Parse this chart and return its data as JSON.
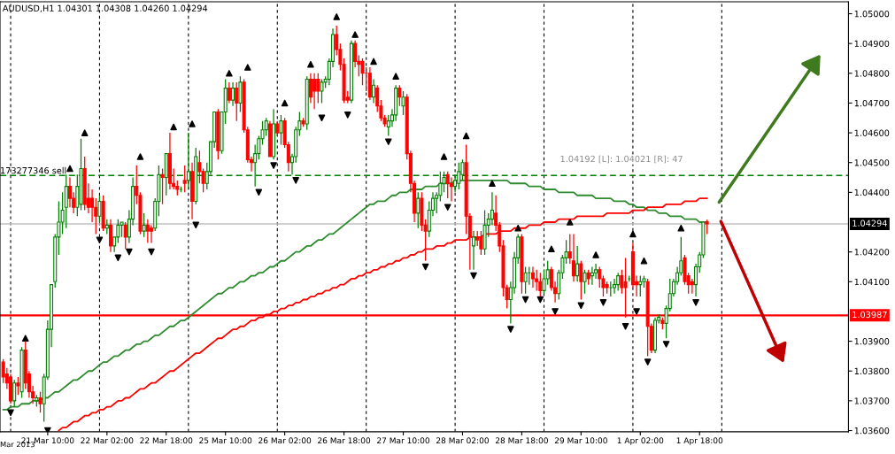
{
  "chart_data": {
    "type": "candlestick",
    "title": "AUDUSD,H1 1.04301 1.04308 1.04260 1.04294",
    "annotations": [
      "Mar 2013",
      "1.04192 [L]: 1.04021 [R]: 47"
    ],
    "categories": [
      null,
      null,
      null,
      null,
      null,
      null,
      null,
      null,
      null,
      null,
      null,
      null,
      "21 Mar 10:00",
      null,
      null,
      null,
      null,
      null,
      null,
      null,
      null,
      null,
      null,
      null,
      null,
      null,
      null,
      null,
      "22 Mar 02:00",
      null,
      null,
      null,
      null,
      null,
      null,
      null,
      null,
      null,
      null,
      null,
      null,
      null,
      null,
      null,
      "22 Mar 18:00",
      null,
      null,
      null,
      null,
      null,
      null,
      null,
      null,
      null,
      null,
      null,
      null,
      null,
      null,
      null,
      "25 Mar 10:00",
      null,
      null,
      null,
      null,
      null,
      null,
      null,
      null,
      null,
      null,
      null,
      null,
      null,
      null,
      null,
      "26 Mar 02:00",
      null,
      null,
      null,
      null,
      null,
      null,
      null,
      null,
      null,
      null,
      null,
      null,
      null,
      null,
      null,
      "26 Mar 18:00",
      null,
      null,
      null,
      null,
      null,
      null,
      null,
      null,
      null,
      null,
      null,
      null,
      null,
      null,
      null,
      "27 Mar 10:00",
      null,
      null,
      null,
      null,
      null,
      null,
      null,
      null,
      null,
      null,
      null,
      null,
      null,
      null,
      null,
      "28 Mar 02:00",
      null,
      null,
      null,
      null,
      null,
      null,
      null,
      null,
      null,
      null,
      null,
      null,
      null,
      null,
      null,
      "28 Mar 18:00",
      null,
      null,
      null,
      null,
      null,
      null,
      null,
      null,
      null,
      null,
      null,
      null,
      null,
      null,
      null,
      "29 Mar 10:00",
      null,
      null,
      null,
      null,
      null,
      null,
      null,
      null,
      null,
      null,
      null,
      null,
      null,
      null,
      null,
      "1 Apr 02:00",
      null,
      null,
      null,
      null,
      null,
      null,
      null,
      null,
      null,
      null,
      null,
      null,
      null,
      null,
      null,
      "1 Apr 18:00",
      null,
      null
    ],
    "ohlc": [
      [
        1.0383,
        1.0384,
        1.0376,
        1.0378
      ],
      [
        1.0379,
        1.0381,
        1.0374,
        1.0376
      ],
      [
        1.0378,
        1.0379,
        1.0369,
        1.037
      ],
      [
        1.037,
        1.0377,
        1.0368,
        1.0376
      ],
      [
        1.0376,
        1.0378,
        1.0372,
        1.0375
      ],
      [
        1.0373,
        1.0388,
        1.0371,
        1.0387
      ],
      [
        1.0387,
        1.039,
        1.0374,
        1.0376
      ],
      [
        1.0379,
        1.038,
        1.0371,
        1.0373
      ],
      [
        1.0373,
        1.0375,
        1.0369,
        1.0371
      ],
      [
        1.037,
        1.0372,
        1.0368,
        1.0371
      ],
      [
        1.0371,
        1.0373,
        1.0366,
        1.0369
      ],
      [
        1.0369,
        1.0379,
        1.0363,
        1.0378
      ],
      [
        1.0378,
        1.0397,
        1.0377,
        1.0394
      ],
      [
        1.0394,
        1.0409,
        1.0388,
        1.0409
      ],
      [
        1.041,
        1.0426,
        1.0408,
        1.0425
      ],
      [
        1.0425,
        1.0437,
        1.0419,
        1.043
      ],
      [
        1.043,
        1.044,
        1.0426,
        1.0434
      ],
      [
        1.0435,
        1.0446,
        1.0428,
        1.0442
      ],
      [
        1.0442,
        1.0445,
        1.0435,
        1.0438
      ],
      [
        1.0438,
        1.044,
        1.0433,
        1.0435
      ],
      [
        1.0435,
        1.0446,
        1.0432,
        1.0442
      ],
      [
        1.0436,
        1.0458,
        1.0434,
        1.0448
      ],
      [
        1.0448,
        1.0452,
        1.0434,
        1.0436
      ],
      [
        1.0438,
        1.0443,
        1.0433,
        1.0435
      ],
      [
        1.0438,
        1.0441,
        1.043,
        1.0435
      ],
      [
        1.0435,
        1.0438,
        1.0426,
        1.0432
      ],
      [
        1.0432,
        1.0439,
        1.043,
        1.0437
      ],
      [
        1.0437,
        1.0439,
        1.0427,
        1.0428
      ],
      [
        1.0428,
        1.0431,
        1.0426,
        1.0429
      ],
      [
        1.0429,
        1.0431,
        1.042,
        1.0422
      ],
      [
        1.0422,
        1.0425,
        1.042,
        1.0425
      ],
      [
        1.0425,
        1.0431,
        1.0423,
        1.0429
      ],
      [
        1.0429,
        1.043,
        1.0425,
        1.043
      ],
      [
        1.0429,
        1.043,
        1.0421,
        1.0425
      ],
      [
        1.0425,
        1.0434,
        1.0423,
        1.0431
      ],
      [
        1.0431,
        1.0445,
        1.0429,
        1.0442
      ],
      [
        1.0442,
        1.0449,
        1.0436,
        1.0439
      ],
      [
        1.0439,
        1.044,
        1.0426,
        1.0427
      ],
      [
        1.0427,
        1.0433,
        1.0425,
        1.0429
      ],
      [
        1.0429,
        1.0431,
        1.0423,
        1.0427
      ],
      [
        1.0428,
        1.0429,
        1.0423,
        1.0427
      ],
      [
        1.0428,
        1.0438,
        1.0427,
        1.0437
      ],
      [
        1.0437,
        1.0449,
        1.0432,
        1.0446
      ],
      [
        1.0446,
        1.0448,
        1.0436,
        1.0445
      ],
      [
        1.0445,
        1.0453,
        1.0439,
        1.0453
      ],
      [
        1.0453,
        1.046,
        1.0441,
        1.0443
      ],
      [
        1.0443,
        1.0448,
        1.0441,
        1.0442
      ],
      [
        1.0442,
        1.0444,
        1.0439,
        1.0441
      ],
      [
        1.0441,
        1.0442,
        1.044,
        1.0441
      ],
      [
        1.0444,
        1.0449,
        1.044,
        1.0443
      ],
      [
        1.0444,
        1.046,
        1.0441,
        1.0447
      ],
      [
        1.0447,
        1.045,
        1.0431,
        1.0437
      ],
      [
        1.0437,
        1.0455,
        1.0436,
        1.0452
      ],
      [
        1.045,
        1.0454,
        1.0443,
        1.0447
      ],
      [
        1.0447,
        1.0448,
        1.044,
        1.0443
      ],
      [
        1.0443,
        1.045,
        1.0441,
        1.0447
      ],
      [
        1.0447,
        1.0457,
        1.0446,
        1.0457
      ],
      [
        1.0457,
        1.0467,
        1.0455,
        1.0467
      ],
      [
        1.0467,
        1.0468,
        1.0451,
        1.0454
      ],
      [
        1.0454,
        1.0467,
        1.0453,
        1.0467
      ],
      [
        1.0467,
        1.0478,
        1.0463,
        1.0475
      ],
      [
        1.0475,
        1.0477,
        1.047,
        1.0471
      ],
      [
        1.0471,
        1.0477,
        1.0469,
        1.0475
      ],
      [
        1.0475,
        1.0477,
        1.0464,
        1.047
      ],
      [
        1.047,
        1.0479,
        1.0467,
        1.0477
      ],
      [
        1.0477,
        1.0478,
        1.046,
        1.0461
      ],
      [
        1.0461,
        1.0462,
        1.045,
        1.0451
      ],
      [
        1.0451,
        1.0452,
        1.0447,
        1.045
      ],
      [
        1.045,
        1.0456,
        1.0442,
        1.0453
      ],
      [
        1.0453,
        1.0459,
        1.0451,
        1.0458
      ],
      [
        1.0458,
        1.0464,
        1.0456,
        1.0461
      ],
      [
        1.0461,
        1.0465,
        1.0459,
        1.0464
      ],
      [
        1.0463,
        1.0464,
        1.0452,
        1.0452
      ],
      [
        1.0452,
        1.0468,
        1.0451,
        1.0463
      ],
      [
        1.0463,
        1.0464,
        1.0459,
        1.046
      ],
      [
        1.046,
        1.0466,
        1.0456,
        1.0464
      ],
      [
        1.0464,
        1.0465,
        1.0455,
        1.0456
      ],
      [
        1.0456,
        1.0457,
        1.0447,
        1.045
      ],
      [
        1.045,
        1.0453,
        1.0446,
        1.0452
      ],
      [
        1.0452,
        1.0462,
        1.045,
        1.0461
      ],
      [
        1.0461,
        1.0467,
        1.0459,
        1.0464
      ],
      [
        1.0464,
        1.0465,
        1.0462,
        1.0463
      ],
      [
        1.0463,
        1.0479,
        1.0461,
        1.0478
      ],
      [
        1.0478,
        1.048,
        1.047,
        1.0472
      ],
      [
        1.0478,
        1.048,
        1.0468,
        1.0474
      ],
      [
        1.0478,
        1.048,
        1.047,
        1.0474
      ],
      [
        1.0474,
        1.0478,
        1.047,
        1.0477
      ],
      [
        1.0477,
        1.0479,
        1.0475,
        1.0478
      ],
      [
        1.0478,
        1.0485,
        1.0476,
        1.0484
      ],
      [
        1.0484,
        1.0495,
        1.0482,
        1.0493
      ],
      [
        1.0493,
        1.0496,
        1.0486,
        1.0488
      ],
      [
        1.0488,
        1.049,
        1.0481,
        1.0483
      ],
      [
        1.0483,
        1.0485,
        1.047,
        1.0471
      ],
      [
        1.0472,
        1.0474,
        1.047,
        1.0471
      ],
      [
        1.0471,
        1.0491,
        1.047,
        1.049
      ],
      [
        1.049,
        1.0491,
        1.0482,
        1.0484
      ],
      [
        1.0484,
        1.0486,
        1.0479,
        1.0483
      ],
      [
        1.0484,
        1.0485,
        1.0476,
        1.048
      ],
      [
        1.048,
        1.0482,
        1.0474,
        1.048
      ],
      [
        1.048,
        1.0482,
        1.0471,
        1.0472
      ],
      [
        1.0472,
        1.0478,
        1.047,
        1.0476
      ],
      [
        1.0475,
        1.0476,
        1.0467,
        1.0469
      ],
      [
        1.0469,
        1.0471,
        1.0464,
        1.0465
      ],
      [
        1.0465,
        1.0466,
        1.0462,
        1.0463
      ],
      [
        1.0462,
        1.0466,
        1.0459,
        1.0464
      ],
      [
        1.0464,
        1.0468,
        1.0462,
        1.0466
      ],
      [
        1.0466,
        1.0476,
        1.0464,
        1.0475
      ],
      [
        1.0475,
        1.0476,
        1.0469,
        1.0472
      ],
      [
        1.0469,
        1.0474,
        1.0466,
        1.0472
      ],
      [
        1.0472,
        1.0473,
        1.0451,
        1.0453
      ],
      [
        1.0453,
        1.0454,
        1.044,
        1.0443
      ],
      [
        1.0443,
        1.0444,
        1.043,
        1.0433
      ],
      [
        1.0433,
        1.044,
        1.0428,
        1.0438
      ],
      [
        1.0438,
        1.044,
        1.0427,
        1.0429
      ],
      [
        1.0429,
        1.0431,
        1.0417,
        1.0427
      ],
      [
        1.0427,
        1.0437,
        1.0425,
        1.0434
      ],
      [
        1.0434,
        1.044,
        1.0432,
        1.0438
      ],
      [
        1.0438,
        1.044,
        1.0433,
        1.0439
      ],
      [
        1.0439,
        1.0447,
        1.0437,
        1.0443
      ],
      [
        1.0443,
        1.0447,
        1.044,
        1.0445
      ],
      [
        1.0446,
        1.0447,
        1.0438,
        1.0443
      ],
      [
        1.0443,
        1.0445,
        1.0437,
        1.0442
      ],
      [
        1.0442,
        1.0446,
        1.044,
        1.0444
      ],
      [
        1.0443,
        1.045,
        1.0441,
        1.0447
      ],
      [
        1.0446,
        1.0451,
        1.0444,
        1.045
      ],
      [
        1.045,
        1.0456,
        1.0426,
        1.0432
      ],
      [
        1.0432,
        1.0433,
        1.0414,
        1.0425
      ],
      [
        1.0422,
        1.0427,
        1.0414,
        1.0425
      ],
      [
        1.0425,
        1.0427,
        1.0422,
        1.0424
      ],
      [
        1.0425,
        1.0427,
        1.0419,
        1.0421
      ],
      [
        1.0421,
        1.0434,
        1.0419,
        1.0429
      ],
      [
        1.0429,
        1.0433,
        1.0425,
        1.0431
      ],
      [
        1.0431,
        1.044,
        1.0429,
        1.0434
      ],
      [
        1.0433,
        1.0439,
        1.0427,
        1.0429
      ],
      [
        1.0429,
        1.043,
        1.042,
        1.0422
      ],
      [
        1.0422,
        1.0424,
        1.0405,
        1.0408
      ],
      [
        1.0408,
        1.0409,
        1.0401,
        1.0404
      ],
      [
        1.0404,
        1.041,
        1.0396,
        1.0408
      ],
      [
        1.0408,
        1.042,
        1.0406,
        1.0418
      ],
      [
        1.0418,
        1.0426,
        1.0416,
        1.0425
      ],
      [
        1.0425,
        1.0426,
        1.0406,
        1.041
      ],
      [
        1.041,
        1.0415,
        1.0406,
        1.0413
      ],
      [
        1.0413,
        1.0415,
        1.0409,
        1.0413
      ],
      [
        1.0413,
        1.0415,
        1.0408,
        1.0411
      ],
      [
        1.0411,
        1.0414,
        1.0407,
        1.041
      ],
      [
        1.041,
        1.0413,
        1.0405,
        1.0407
      ],
      [
        1.0407,
        1.0414,
        1.0406,
        1.0411
      ],
      [
        1.0411,
        1.0417,
        1.0409,
        1.0414
      ],
      [
        1.0414,
        1.0415,
        1.0407,
        1.0408
      ],
      [
        1.0408,
        1.041,
        1.0403,
        1.0406
      ],
      [
        1.0406,
        1.0414,
        1.0404,
        1.0413
      ],
      [
        1.0413,
        1.0419,
        1.0411,
        1.0418
      ],
      [
        1.0418,
        1.0424,
        1.0416,
        1.042
      ],
      [
        1.042,
        1.0426,
        1.0416,
        1.0418
      ],
      [
        1.0417,
        1.0426,
        1.041,
        1.0412
      ],
      [
        1.0412,
        1.0422,
        1.041,
        1.0416
      ],
      [
        1.0416,
        1.0417,
        1.0404,
        1.041
      ],
      [
        1.041,
        1.0414,
        1.0406,
        1.0413
      ],
      [
        1.0413,
        1.0414,
        1.0409,
        1.0411
      ],
      [
        1.0412,
        1.0415,
        1.0409,
        1.0413
      ],
      [
        1.0413,
        1.0416,
        1.0411,
        1.0414
      ],
      [
        1.0414,
        1.0415,
        1.0408,
        1.0411
      ],
      [
        1.0411,
        1.0412,
        1.0405,
        1.0408
      ],
      [
        1.0409,
        1.041,
        1.0406,
        1.0408
      ],
      [
        1.0408,
        1.041,
        1.0405,
        1.0408
      ],
      [
        1.0408,
        1.0411,
        1.0406,
        1.0409
      ],
      [
        1.0409,
        1.0413,
        1.0407,
        1.0412
      ],
      [
        1.0412,
        1.0414,
        1.0406,
        1.0408
      ],
      [
        1.041,
        1.0418,
        1.0398,
        1.0408
      ],
      [
        1.0411,
        1.0412,
        1.041,
        1.0411
      ],
      [
        1.042,
        1.0423,
        1.0408,
        1.0409
      ],
      [
        1.041,
        1.0412,
        1.0405,
        1.0409
      ],
      [
        1.0409,
        1.0412,
        1.0405,
        1.041
      ],
      [
        1.041,
        1.0412,
        1.0408,
        1.0411
      ],
      [
        1.041,
        1.0411,
        1.0385,
        1.0395
      ],
      [
        1.0395,
        1.0396,
        1.0386,
        1.0387
      ],
      [
        1.0387,
        1.0398,
        1.0386,
        1.0397
      ],
      [
        1.0397,
        1.0399,
        1.0396,
        1.0398
      ],
      [
        1.0397,
        1.0398,
        1.0394,
        1.0396
      ],
      [
        1.0396,
        1.0402,
        1.0391,
        1.0401
      ],
      [
        1.0401,
        1.0411,
        1.04,
        1.0406
      ],
      [
        1.0406,
        1.0411,
        1.0405,
        1.041
      ],
      [
        1.041,
        1.0415,
        1.0409,
        1.0413
      ],
      [
        1.0413,
        1.0425,
        1.0412,
        1.0417
      ],
      [
        1.0418,
        1.0419,
        1.0409,
        1.041
      ],
      [
        1.0412,
        1.0413,
        1.0406,
        1.0409
      ],
      [
        1.041,
        1.0411,
        1.0406,
        1.0409
      ],
      [
        1.0409,
        1.0416,
        1.0405,
        1.0415
      ],
      [
        1.0415,
        1.042,
        1.0413,
        1.0419
      ],
      [
        1.0419,
        1.043,
        1.0418,
        1.043
      ],
      [
        1.04301,
        1.04308,
        1.0426,
        1.04294
      ]
    ],
    "colors": [
      "#ff0000",
      "#ff0000",
      "#ff0000",
      "#008000",
      "#ff0000",
      "#008000",
      "#ff0000",
      "#ff0000",
      "#ff0000",
      "#008000",
      "#ff0000",
      "#008000",
      "#008000",
      "#008000",
      "#008000",
      "#008000",
      "#008000",
      "#008000",
      "#ff0000",
      "#ff0000",
      "#008000",
      "#008000",
      "#ff0000",
      "#ff0000",
      "#ff0000",
      "#ff0000",
      "#008000",
      "#ff0000",
      "#008000",
      "#ff0000",
      "#008000",
      "#008000",
      "#008000",
      "#ff0000",
      "#008000",
      "#008000",
      "#ff0000",
      "#ff0000",
      "#008000",
      "#ff0000",
      "#ff0000",
      "#008000",
      "#008000",
      "#ff0000",
      "#008000",
      "#ff0000",
      "#ff0000",
      "#ff0000",
      "#008000",
      "#ff0000",
      "#008000",
      "#ff0000",
      "#008000",
      "#ff0000",
      "#ff0000",
      "#008000",
      "#008000",
      "#008000",
      "#ff0000",
      "#008000",
      "#008000",
      "#ff0000",
      "#008000",
      "#ff0000",
      "#008000",
      "#ff0000",
      "#ff0000",
      "#ff0000",
      "#008000",
      "#008000",
      "#008000",
      "#008000",
      "#ff0000",
      "#008000",
      "#ff0000",
      "#008000",
      "#ff0000",
      "#ff0000",
      "#008000",
      "#008000",
      "#008000",
      "#ff0000",
      "#008000",
      "#ff0000",
      "#ff0000",
      "#ff0000",
      "#008000",
      "#008000",
      "#008000",
      "#008000",
      "#ff0000",
      "#ff0000",
      "#ff0000",
      "#ff0000",
      "#008000",
      "#ff0000",
      "#ff0000",
      "#ff0000",
      "#ff0000",
      "#ff0000",
      "#008000",
      "#ff0000",
      "#ff0000",
      "#ff0000",
      "#008000",
      "#008000",
      "#008000",
      "#ff0000",
      "#008000",
      "#ff0000",
      "#ff0000",
      "#ff0000",
      "#008000",
      "#ff0000",
      "#ff0000",
      "#008000",
      "#008000",
      "#008000",
      "#008000",
      "#008000",
      "#ff0000",
      "#ff0000",
      "#008000",
      "#008000",
      "#008000",
      "#ff0000",
      "#ff0000",
      "#008000",
      "#ff0000",
      "#ff0000",
      "#008000",
      "#008000",
      "#008000",
      "#ff0000",
      "#ff0000",
      "#ff0000",
      "#ff0000",
      "#008000",
      "#008000",
      "#008000",
      "#ff0000",
      "#008000",
      "#008000",
      "#ff0000",
      "#ff0000",
      "#ff0000",
      "#008000",
      "#008000",
      "#ff0000",
      "#ff0000",
      "#008000",
      "#008000",
      "#008000",
      "#ff0000",
      "#ff0000",
      "#008000",
      "#ff0000",
      "#008000",
      "#ff0000",
      "#008000",
      "#008000",
      "#ff0000",
      "#ff0000",
      "#ff0000",
      "#008000",
      "#008000",
      "#008000",
      "#ff0000",
      "#ff0000",
      "#008000",
      "#ff0000",
      "#ff0000",
      "#008000",
      "#008000",
      "#ff0000",
      "#ff0000",
      "#008000",
      "#008000",
      "#ff0000",
      "#008000",
      "#008000",
      "#008000",
      "#008000",
      "#008000",
      "#ff0000",
      "#ff0000",
      "#ff0000",
      "#008000",
      "#008000",
      "#008000",
      "#ff0000"
    ],
    "series": [
      {
        "type": "line",
        "color": "#2e8b2e",
        "values": [
          1.0367,
          1.0367,
          1.0368,
          1.0368,
          1.0368,
          1.0369,
          1.0369,
          1.0369,
          1.037,
          1.037,
          1.037,
          1.0371,
          1.0371,
          1.0372,
          1.0373,
          1.0373,
          1.0374,
          1.0375,
          1.0376,
          1.0377,
          1.0377,
          1.0378,
          1.0379,
          1.038,
          1.038,
          1.0381,
          1.0382,
          1.0383,
          1.0383,
          1.0384,
          1.0385,
          1.0385,
          1.0386,
          1.0387,
          1.0387,
          1.0388,
          1.0389,
          1.0389,
          1.039,
          1.039,
          1.0391,
          1.0392,
          1.0392,
          1.0393,
          1.0394,
          1.0395,
          1.0395,
          1.0396,
          1.0397,
          1.0397,
          1.0398,
          1.0399,
          1.04,
          1.0401,
          1.0402,
          1.0403,
          1.0404,
          1.0405,
          1.0406,
          1.0406,
          1.0407,
          1.0408,
          1.0408,
          1.0409,
          1.041,
          1.041,
          1.0411,
          1.0412,
          1.0412,
          1.0413,
          1.0413,
          1.0414,
          1.0415,
          1.0415,
          1.0416,
          1.0417,
          1.0417,
          1.0418,
          1.0419,
          1.042,
          1.042,
          1.0421,
          1.0422,
          1.0422,
          1.0423,
          1.0424,
          1.0424,
          1.0425,
          1.0426,
          1.0426,
          1.0427,
          1.0428,
          1.0429,
          1.043,
          1.0431,
          1.0432,
          1.0433,
          1.0434,
          1.0435,
          1.0436,
          1.0436,
          1.0437,
          1.0437,
          1.0437,
          1.0438,
          1.0439,
          1.0439,
          1.044,
          1.044,
          1.044,
          1.0441,
          1.0441,
          1.0441,
          1.0441,
          1.0442,
          1.0442,
          1.0442,
          1.0442,
          1.0443,
          1.0443,
          1.0443,
          1.0443,
          1.0444,
          1.0444,
          1.0444,
          1.0444,
          1.0444,
          1.0444,
          1.0444,
          1.0444,
          1.0444,
          1.0444,
          1.0444,
          1.0444,
          1.0444,
          1.0444,
          1.0444,
          1.0443,
          1.0443,
          1.0443,
          1.0443,
          1.0443,
          1.0442,
          1.0442,
          1.0442,
          1.0442,
          1.0441,
          1.0441,
          1.0441,
          1.0441,
          1.044,
          1.044,
          1.044,
          1.044,
          1.044,
          1.0439,
          1.0439,
          1.0439,
          1.0439,
          1.0439,
          1.0438,
          1.0438,
          1.0438,
          1.0438,
          1.0438,
          1.0437,
          1.0437,
          1.0437,
          1.0437,
          1.0436,
          1.0436,
          1.0435,
          1.0435,
          1.0435,
          1.0434,
          1.0434,
          1.0434,
          1.0433,
          1.0433,
          1.0433,
          1.0432,
          1.0432,
          1.0432,
          1.0432,
          1.0431,
          1.0431,
          1.0431,
          1.0431,
          1.043,
          1.043,
          1.043
        ]
      },
      {
        "type": "line",
        "color": "#ff0000",
        "values": [
          null,
          null,
          null,
          null,
          null,
          null,
          null,
          null,
          null,
          null,
          null,
          null,
          null,
          null,
          null,
          1.036,
          1.0361,
          1.0361,
          1.0362,
          1.0363,
          1.0363,
          1.0364,
          1.0365,
          1.0365,
          1.0366,
          1.0366,
          1.0367,
          1.0367,
          1.0368,
          1.0368,
          1.0369,
          1.037,
          1.037,
          1.0371,
          1.0371,
          1.0372,
          1.0373,
          1.0374,
          1.0374,
          1.0375,
          1.0376,
          1.0376,
          1.0377,
          1.0378,
          1.0379,
          1.038,
          1.038,
          1.0381,
          1.0382,
          1.0383,
          1.0384,
          1.0385,
          1.0386,
          1.0386,
          1.0387,
          1.0388,
          1.0389,
          1.039,
          1.0391,
          1.0391,
          1.0392,
          1.0393,
          1.0394,
          1.0394,
          1.0395,
          1.0395,
          1.0396,
          1.0397,
          1.0397,
          1.0398,
          1.0398,
          1.0399,
          1.0399,
          1.04,
          1.04,
          1.0401,
          1.0401,
          1.0402,
          1.0402,
          1.0403,
          1.0403,
          1.0404,
          1.0404,
          1.0405,
          1.0405,
          1.0406,
          1.0406,
          1.0407,
          1.0407,
          1.0408,
          1.0408,
          1.0409,
          1.0409,
          1.041,
          1.0411,
          1.0411,
          1.0412,
          1.0412,
          1.0413,
          1.0413,
          1.0414,
          1.0414,
          1.0415,
          1.0415,
          1.0416,
          1.0416,
          1.0417,
          1.0417,
          1.0418,
          1.0418,
          1.0419,
          1.0419,
          1.042,
          1.042,
          1.0421,
          1.0421,
          1.0421,
          1.0422,
          1.0422,
          1.0422,
          1.0423,
          1.0423,
          1.0424,
          1.0424,
          1.0424,
          1.0424,
          1.0425,
          1.0425,
          1.0425,
          1.0425,
          1.0426,
          1.0426,
          1.0426,
          1.0426,
          1.0427,
          1.0427,
          1.0427,
          1.0427,
          1.0428,
          1.0428,
          1.0428,
          1.0428,
          1.0429,
          1.0429,
          1.0429,
          1.0429,
          1.043,
          1.043,
          1.043,
          1.043,
          1.0431,
          1.0431,
          1.0431,
          1.0431,
          1.0431,
          1.0432,
          1.0432,
          1.0432,
          1.0432,
          1.0432,
          1.0432,
          1.0432,
          1.0432,
          1.0433,
          1.0433,
          1.0433,
          1.0433,
          1.0433,
          1.0433,
          1.0433,
          1.0434,
          1.0434,
          1.0434,
          1.0434,
          1.0435,
          1.0435,
          1.0435,
          1.0435,
          1.0435,
          1.0436,
          1.0436,
          1.0436,
          1.0436,
          1.0436,
          1.0437,
          1.0437,
          1.0437,
          1.0437,
          1.0438,
          1.0438,
          1.0438
        ]
      },
      {
        "type": "scatter",
        "color": "#000000",
        "marker": "triangle",
        "values": [
          null,
          null,
          null,
          null,
          null,
          null,
          1.0391,
          null,
          null,
          null,
          null,
          null,
          null,
          null,
          null,
          null,
          null,
          null,
          1.0448,
          null,
          null,
          null,
          1.046,
          null,
          null,
          null,
          null,
          null,
          null,
          null,
          null,
          null,
          null,
          null,
          null,
          null,
          null,
          1.0452,
          null,
          null,
          null,
          null,
          null,
          null,
          null,
          null,
          1.0462,
          null,
          null,
          null,
          null,
          1.0463,
          null,
          null,
          null,
          null,
          null,
          null,
          null,
          null,
          null,
          1.048,
          null,
          null,
          null,
          null,
          1.0482,
          null,
          null,
          null,
          null,
          null,
          null,
          null,
          null,
          null,
          1.047,
          null,
          null,
          null,
          null,
          null,
          null,
          1.0483,
          null,
          null,
          null,
          null,
          null,
          null,
          1.0499,
          null,
          null,
          null,
          null,
          1.0493,
          null,
          null,
          null,
          null,
          1.0484,
          null,
          null,
          null,
          null,
          null,
          1.0479,
          null,
          null,
          null,
          null,
          null,
          null,
          null,
          null,
          null,
          null,
          null,
          null,
          1.0452,
          null,
          null,
          null,
          null,
          null,
          1.0459,
          null,
          null,
          null,
          null,
          null,
          null,
          1.0443,
          null,
          null,
          null,
          null,
          null,
          null,
          1.0428,
          null,
          null,
          null,
          null,
          null,
          null,
          null,
          null,
          1.0421,
          null,
          null,
          null,
          null,
          1.043,
          null,
          null,
          null,
          null,
          null,
          null,
          1.0419,
          null,
          null,
          null,
          null,
          null,
          null,
          null,
          null,
          null,
          1.0426,
          null,
          null,
          1.0417,
          null,
          null,
          null,
          null,
          null,
          null,
          null,
          null,
          null,
          1.0428,
          null,
          null,
          null,
          null,
          null,
          null,
          null
        ]
      },
      {
        "type": "scatter",
        "color": "#000000",
        "marker": "triangle_down",
        "values": [
          null,
          null,
          1.0366,
          null,
          null,
          null,
          null,
          null,
          null,
          null,
          null,
          null,
          1.036,
          null,
          null,
          null,
          null,
          null,
          null,
          null,
          null,
          null,
          null,
          null,
          null,
          null,
          1.0424,
          null,
          null,
          null,
          null,
          1.0418,
          null,
          null,
          1.042,
          null,
          null,
          null,
          null,
          null,
          1.042,
          null,
          null,
          null,
          null,
          null,
          null,
          null,
          null,
          null,
          null,
          null,
          1.0429,
          null,
          null,
          null,
          null,
          null,
          null,
          null,
          null,
          null,
          null,
          null,
          null,
          null,
          null,
          null,
          null,
          1.044,
          null,
          null,
          null,
          1.0449,
          null,
          null,
          null,
          null,
          null,
          1.0444,
          null,
          null,
          null,
          null,
          null,
          null,
          1.0465,
          null,
          null,
          null,
          null,
          null,
          null,
          1.0466,
          null,
          null,
          null,
          null,
          null,
          null,
          null,
          null,
          null,
          null,
          1.0457,
          null,
          null,
          null,
          null,
          null,
          null,
          null,
          null,
          null,
          1.0415,
          null,
          null,
          null,
          null,
          null,
          1.0435,
          null,
          null,
          null,
          null,
          null,
          null,
          1.0412,
          null,
          null,
          null,
          null,
          null,
          null,
          null,
          null,
          null,
          1.0394,
          null,
          null,
          null,
          1.0404,
          null,
          null,
          null,
          1.0404,
          null,
          null,
          null,
          1.04,
          null,
          null,
          null,
          null,
          null,
          null,
          1.0402,
          null,
          null,
          null,
          null,
          null,
          1.0403,
          null,
          null,
          null,
          null,
          null,
          1.0395,
          null,
          null,
          1.04,
          null,
          null,
          1.0383,
          null,
          null,
          null,
          null,
          1.0389,
          null,
          null,
          null,
          null,
          null,
          null,
          null,
          1.0403,
          null,
          null,
          null
        ]
      }
    ],
    "ylim": [
      1.03596,
      1.0504
    ],
    "yticks": [
      {
        "value": 1.036,
        "label": "1.03600"
      },
      {
        "value": 1.037,
        "label": "1.03700"
      },
      {
        "value": 1.038,
        "label": "1.03800"
      },
      {
        "value": 1.039,
        "label": "1.03900"
      },
      {
        "value": 1.041,
        "label": "1.04100"
      },
      {
        "value": 1.042,
        "label": "1.04200"
      },
      {
        "value": 1.044,
        "label": "1.04400"
      },
      {
        "value": 1.045,
        "label": "1.04500"
      },
      {
        "value": 1.046,
        "label": "1.04600"
      },
      {
        "value": 1.047,
        "label": "1.04700"
      },
      {
        "value": 1.048,
        "label": "1.04800"
      },
      {
        "value": 1.049,
        "label": "1.04900"
      },
      {
        "value": 1.05,
        "label": "1.05000"
      }
    ],
    "ref_lines": [
      {
        "axis": "y",
        "value": 1.04457,
        "label": "173277346 sell",
        "color": "#008000",
        "line_style": "dashed"
      },
      {
        "axis": "y",
        "value": 1.04294,
        "label": "1.04294",
        "color": "#c0c0c0",
        "line_style": "solid"
      },
      {
        "axis": "y",
        "value": 1.03987,
        "label": "1.03987",
        "color": "#ff0000",
        "line_style": "solid"
      }
    ]
  }
}
